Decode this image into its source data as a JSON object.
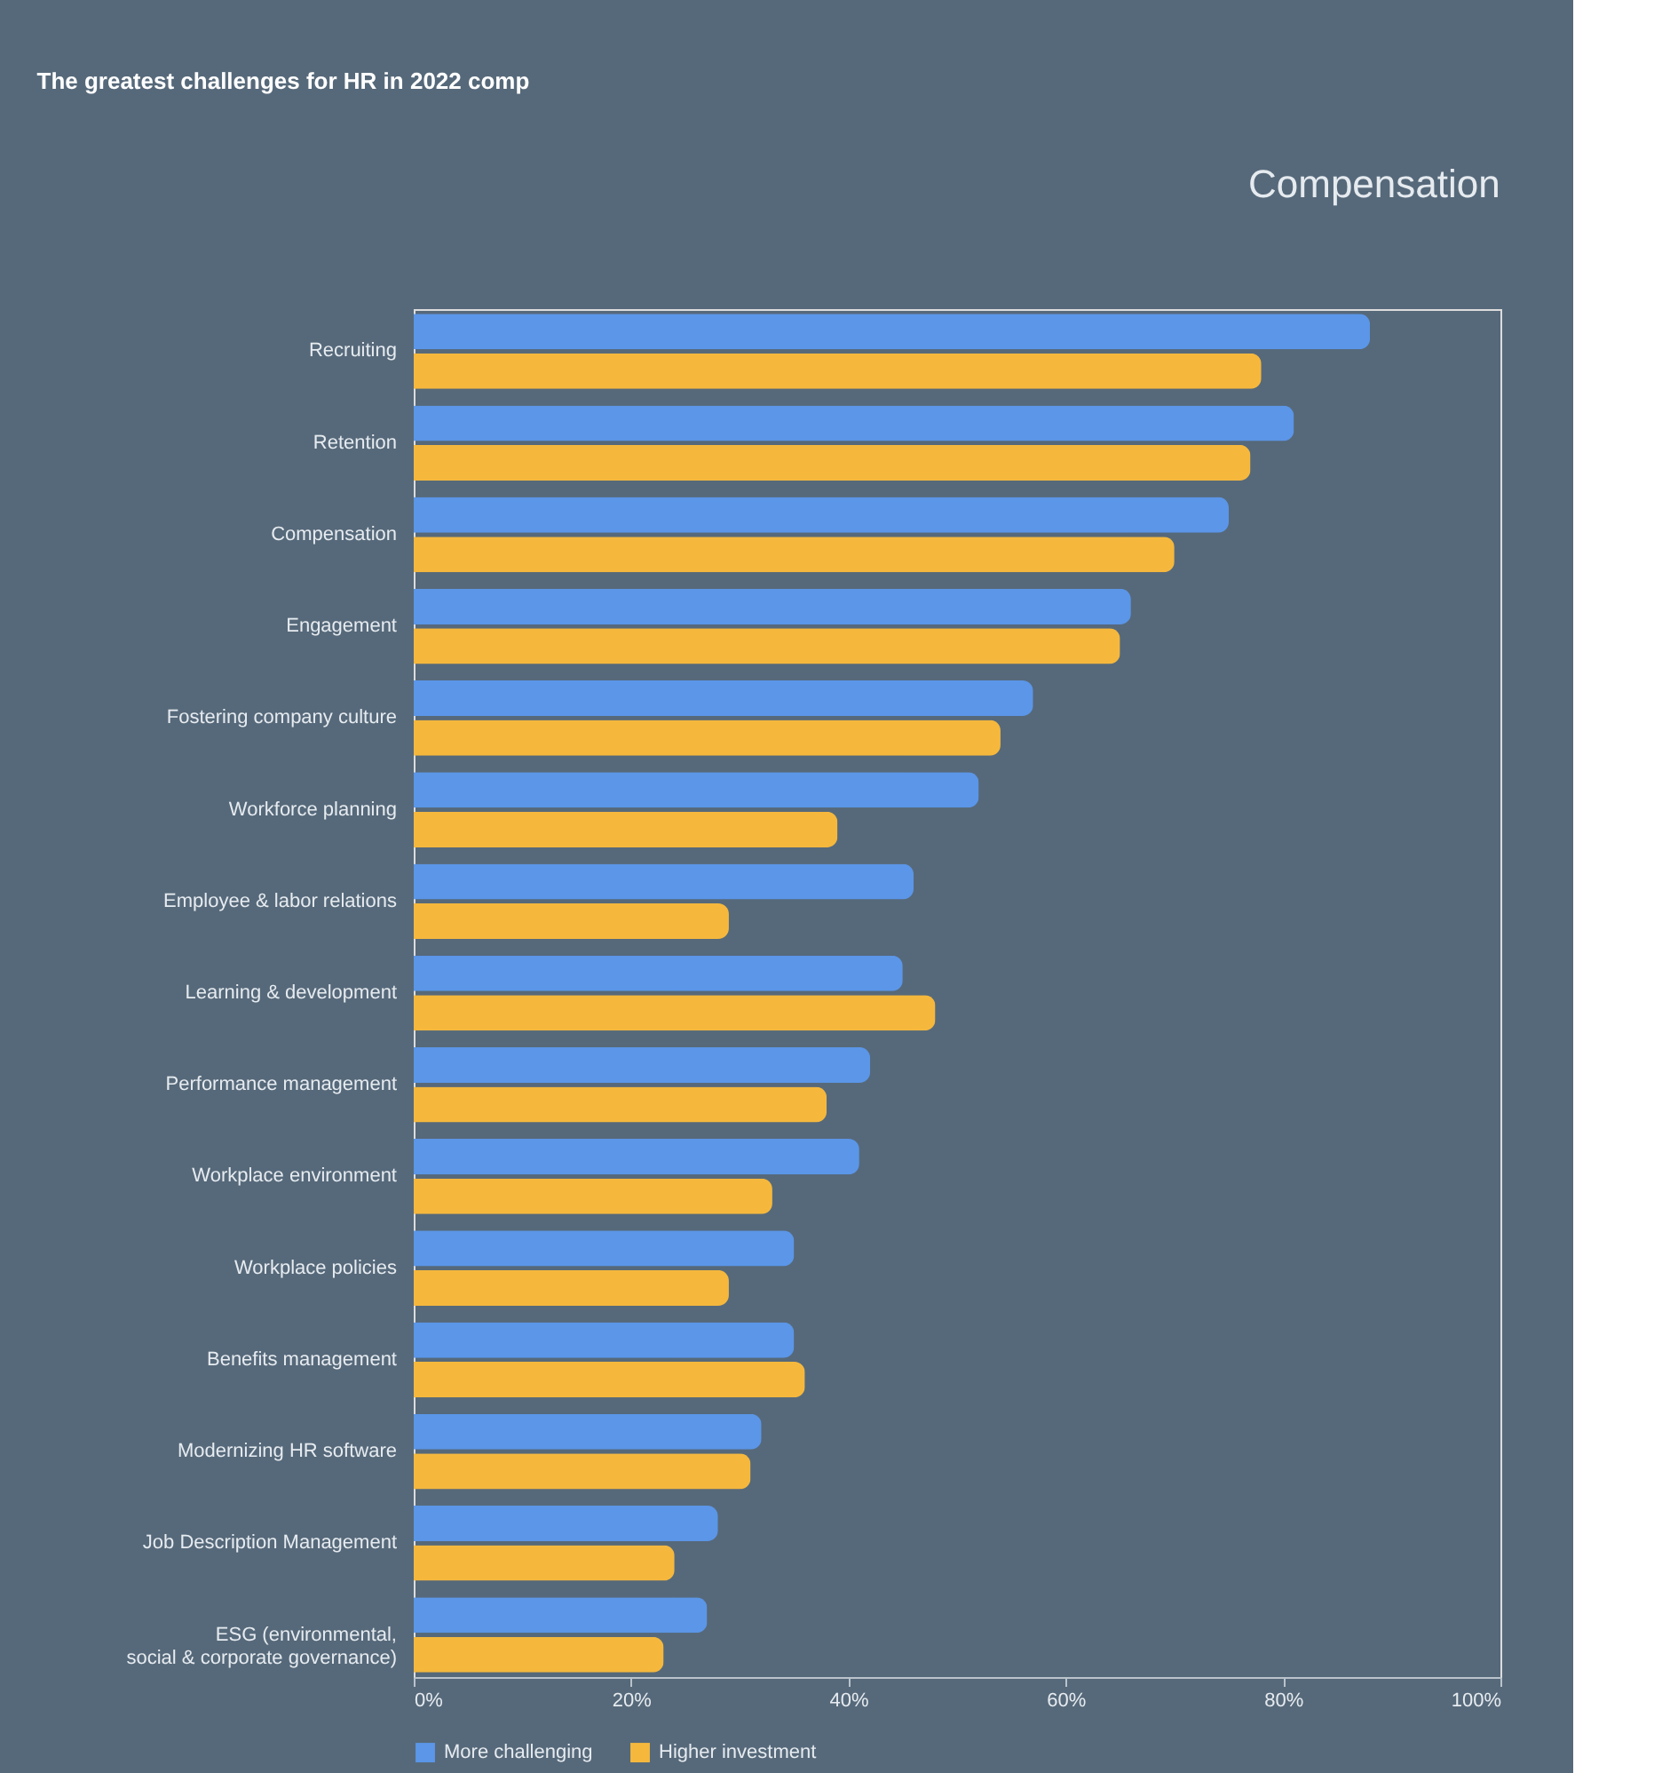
{
  "chart_data": {
    "type": "bar",
    "orientation": "horizontal",
    "title": "The greatest challenges for HR in 2022 comp",
    "annotations": [
      "Compensation"
    ],
    "categories": [
      "Recruiting",
      "Retention",
      "Compensation",
      "Engagement",
      "Fostering company culture",
      "Workforce planning",
      "Employee & labor relations",
      "Learning & development",
      "Performance management",
      "Workplace environment",
      "Workplace policies",
      "Benefits management",
      "Modernizing HR software",
      "Job Description Management",
      "ESG (environmental,\nsocial & corporate governance)"
    ],
    "series": [
      {
        "name": "More challenging",
        "color": "#5b96e8",
        "values": [
          88,
          81,
          75,
          66,
          57,
          52,
          46,
          45,
          42,
          41,
          35,
          35,
          32,
          28,
          27
        ]
      },
      {
        "name": "Higher investment",
        "color": "#f5b83d",
        "values": [
          78,
          77,
          70,
          65,
          54,
          39,
          29,
          48,
          38,
          33,
          29,
          36,
          31,
          24,
          23
        ]
      }
    ],
    "xlim": [
      0,
      100
    ],
    "xticks": [
      {
        "value": 0,
        "label": "0%"
      },
      {
        "value": 20,
        "label": "20%"
      },
      {
        "value": 40,
        "label": "40%"
      },
      {
        "value": 60,
        "label": "60%"
      },
      {
        "value": 80,
        "label": "80%"
      },
      {
        "value": 100,
        "label": "100%"
      }
    ],
    "grid": false,
    "legend": "bottom"
  }
}
